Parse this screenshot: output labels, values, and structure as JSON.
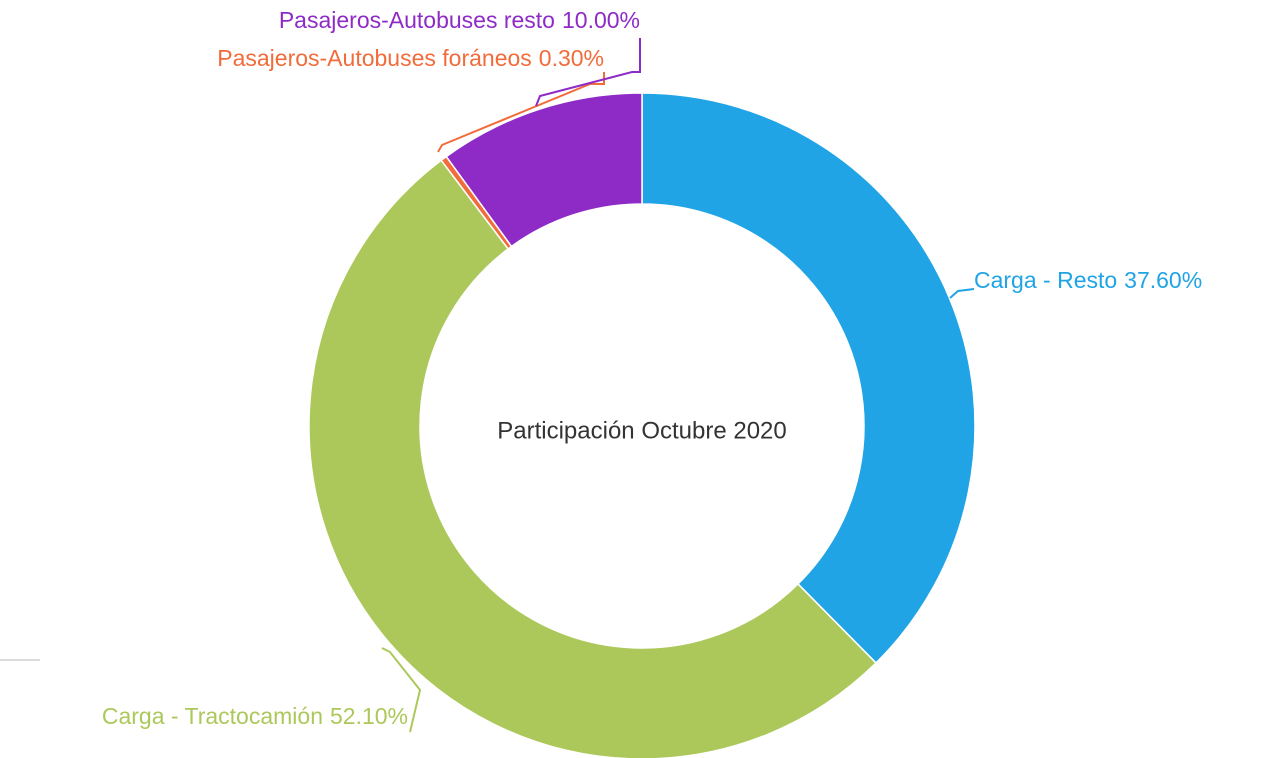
{
  "chart_data": {
    "type": "donut",
    "title": "Participación Octubre 2020",
    "categories": [
      "Carga - Resto",
      "Carga - Tractocamión",
      "Pasajeros-Autobuses foráneos",
      "Pasajeros-Autobuses resto"
    ],
    "values": [
      37.6,
      52.1,
      0.3,
      10.0
    ],
    "value_labels": [
      "37.60%",
      "52.10%",
      "0.30%",
      "10.00%"
    ],
    "colors": [
      "#20a4e6",
      "#acc85a",
      "#f26b3a",
      "#8e2bc7"
    ]
  }
}
